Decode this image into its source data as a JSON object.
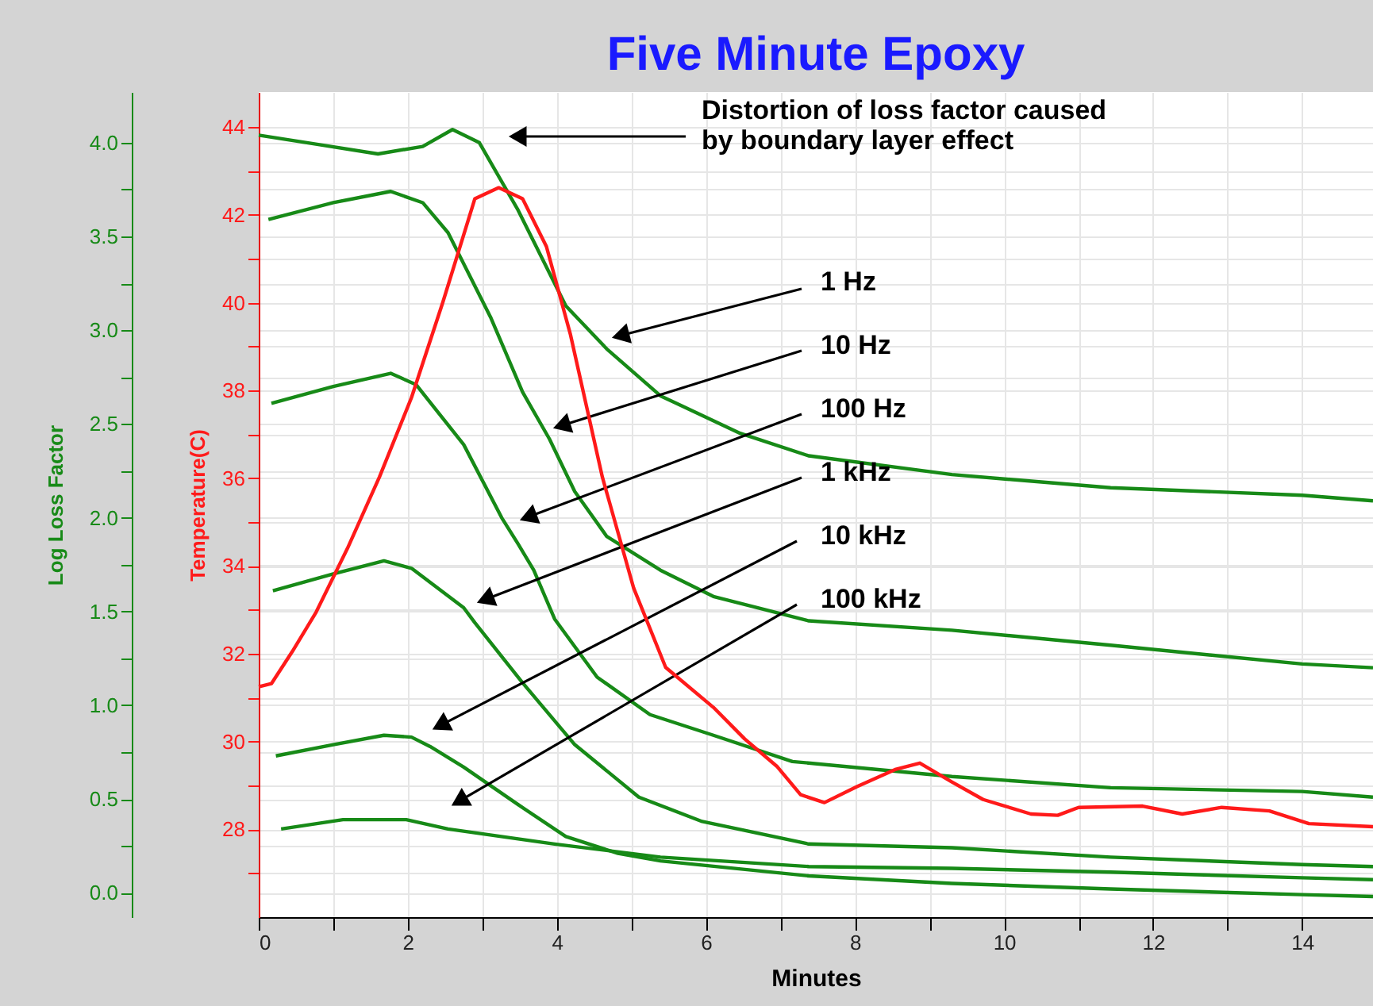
{
  "chart_data": {
    "type": "line",
    "title": "Five Minute Epoxy",
    "xlabel": "Minutes",
    "ylabel": "Log Loss Factor",
    "y2label": "Temperature(C)",
    "xlim": [
      0,
      14.95
    ],
    "xticks": [
      0,
      {
        "value": 1,
        "label": null
      },
      2,
      {
        "value": 3,
        "label": null
      },
      4,
      {
        "value": 5,
        "label": null
      },
      6,
      {
        "value": 7,
        "label": null
      },
      8,
      {
        "value": 9,
        "label": null
      },
      10,
      {
        "value": 11,
        "label": null
      },
      12,
      {
        "value": 13,
        "label": null
      },
      14
    ],
    "ylim": [
      -0.13,
      4.27
    ],
    "yticks": [
      {
        "value": 0,
        "label": "0.0"
      },
      {
        "value": 0.25,
        "label": null
      },
      0.5,
      {
        "value": 0.75,
        "label": null
      },
      {
        "value": 1,
        "label": "1.0"
      },
      {
        "value": 1.25,
        "label": null
      },
      1.5,
      {
        "value": 1.75,
        "label": null
      },
      {
        "value": 2,
        "label": "2.0"
      },
      {
        "value": 2.25,
        "label": null
      },
      2.5,
      {
        "value": 2.75,
        "label": null
      },
      {
        "value": 3,
        "label": "3.0"
      },
      {
        "value": 3.25,
        "label": null
      },
      3.5,
      {
        "value": 3.75,
        "label": null
      },
      {
        "value": 4,
        "label": "4.0"
      }
    ],
    "y2lim": [
      26.0,
      44.8
    ],
    "y2ticks": [
      {
        "value": 27,
        "label": null
      },
      28,
      {
        "value": 29,
        "label": null
      },
      30,
      {
        "value": 31,
        "label": null
      },
      32,
      {
        "value": 33,
        "label": null
      },
      34,
      {
        "value": 35,
        "label": null
      },
      36,
      {
        "value": 37,
        "label": null
      },
      38,
      {
        "value": 39,
        "label": null
      },
      40,
      {
        "value": 41,
        "label": null
      },
      42,
      {
        "value": 43,
        "label": null
      },
      44
    ],
    "grid": true,
    "series": [
      {
        "color": "#178a17",
        "x": [
          0,
          0.8,
          1.6,
          2.2,
          2.6,
          2.96,
          3.48,
          4.12,
          4.67,
          5.39,
          6.46,
          7.38,
          9.3,
          11.43,
          14.0,
          14.95
        ],
        "values": [
          4.04,
          3.99,
          3.94,
          3.98,
          4.07,
          4.0,
          3.64,
          3.13,
          2.9,
          2.65,
          2.45,
          2.33,
          2.23,
          2.16,
          2.12,
          2.09
        ]
      },
      {
        "color": "#178a17",
        "x": [
          0.13,
          1.0,
          1.77,
          2.2,
          2.54,
          3.11,
          3.54,
          3.9,
          4.24,
          4.67,
          5.39,
          6.1,
          7.38,
          9.3,
          11.43,
          14.0,
          14.95
        ],
        "values": [
          3.59,
          3.68,
          3.74,
          3.68,
          3.52,
          3.07,
          2.67,
          2.42,
          2.14,
          1.9,
          1.72,
          1.58,
          1.45,
          1.4,
          1.32,
          1.22,
          1.2
        ]
      },
      {
        "color": "#178a17",
        "x": [
          0.17,
          1.0,
          1.77,
          2.11,
          2.75,
          3.26,
          3.48,
          3.69,
          3.97,
          4.54,
          5.25,
          6.1,
          7.16,
          9.3,
          11.43,
          14.0,
          14.95
        ],
        "values": [
          2.61,
          2.7,
          2.77,
          2.71,
          2.39,
          2.0,
          1.86,
          1.72,
          1.46,
          1.15,
          0.95,
          0.84,
          0.7,
          0.62,
          0.56,
          0.54,
          0.51
        ]
      },
      {
        "color": "#178a17",
        "x": [
          0.19,
          1.0,
          1.68,
          2.05,
          2.75,
          2.9,
          3.54,
          4.24,
          5.1,
          5.95,
          7.38,
          9.3,
          11.43,
          14.0,
          14.95
        ],
        "values": [
          1.61,
          1.7,
          1.77,
          1.73,
          1.52,
          1.44,
          1.12,
          0.79,
          0.51,
          0.38,
          0.26,
          0.24,
          0.19,
          0.15,
          0.14
        ]
      },
      {
        "color": "#178a17",
        "x": [
          0.23,
          1.0,
          1.68,
          2.05,
          2.3,
          2.75,
          3.48,
          4.12,
          4.82,
          5.39,
          7.38,
          9.3,
          11.43,
          14.0,
          14.95
        ],
        "values": [
          0.73,
          0.79,
          0.84,
          0.83,
          0.78,
          0.67,
          0.47,
          0.3,
          0.21,
          0.17,
          0.09,
          0.05,
          0.02,
          -0.01,
          -0.02
        ]
      },
      {
        "color": "#178a17",
        "x": [
          0.3,
          1.13,
          1.98,
          2.54,
          3.97,
          5.39,
          7.38,
          9.3,
          11.43,
          14.0,
          14.95
        ],
        "values": [
          0.34,
          0.39,
          0.39,
          0.34,
          0.26,
          0.19,
          0.14,
          0.13,
          0.11,
          0.08,
          0.07
        ]
      },
      {
        "color": "#ff1a1a",
        "axis": "y2",
        "x": [
          0,
          0.17,
          0.45,
          0.77,
          1.19,
          1.62,
          2.05,
          2.47,
          2.9,
          3.22,
          3.54,
          3.86,
          4.18,
          4.61,
          5.03,
          5.46,
          6.1,
          6.52,
          6.95,
          7.27,
          7.59,
          8.02,
          8.55,
          8.87,
          9.3,
          9.72,
          10.36,
          10.72,
          11.0,
          11.86,
          12.39,
          12.92,
          13.56,
          14.09,
          14.95
        ],
        "values": [
          31.25,
          31.32,
          32.05,
          32.95,
          34.4,
          36.03,
          37.84,
          40.01,
          42.37,
          42.62,
          42.37,
          41.28,
          39.29,
          36.03,
          33.5,
          31.69,
          30.78,
          30.06,
          29.44,
          28.79,
          28.61,
          28.97,
          29.37,
          29.51,
          29.08,
          28.68,
          28.35,
          28.32,
          28.5,
          28.53,
          28.35,
          28.5,
          28.42,
          28.13,
          28.06
        ]
      }
    ],
    "annotations": [
      "Distortion of loss factor caused\nby boundary layer effect",
      "1 Hz",
      "10 Hz",
      "100 Hz",
      "1 kHz",
      "10 kHz",
      "100 kHz"
    ]
  }
}
